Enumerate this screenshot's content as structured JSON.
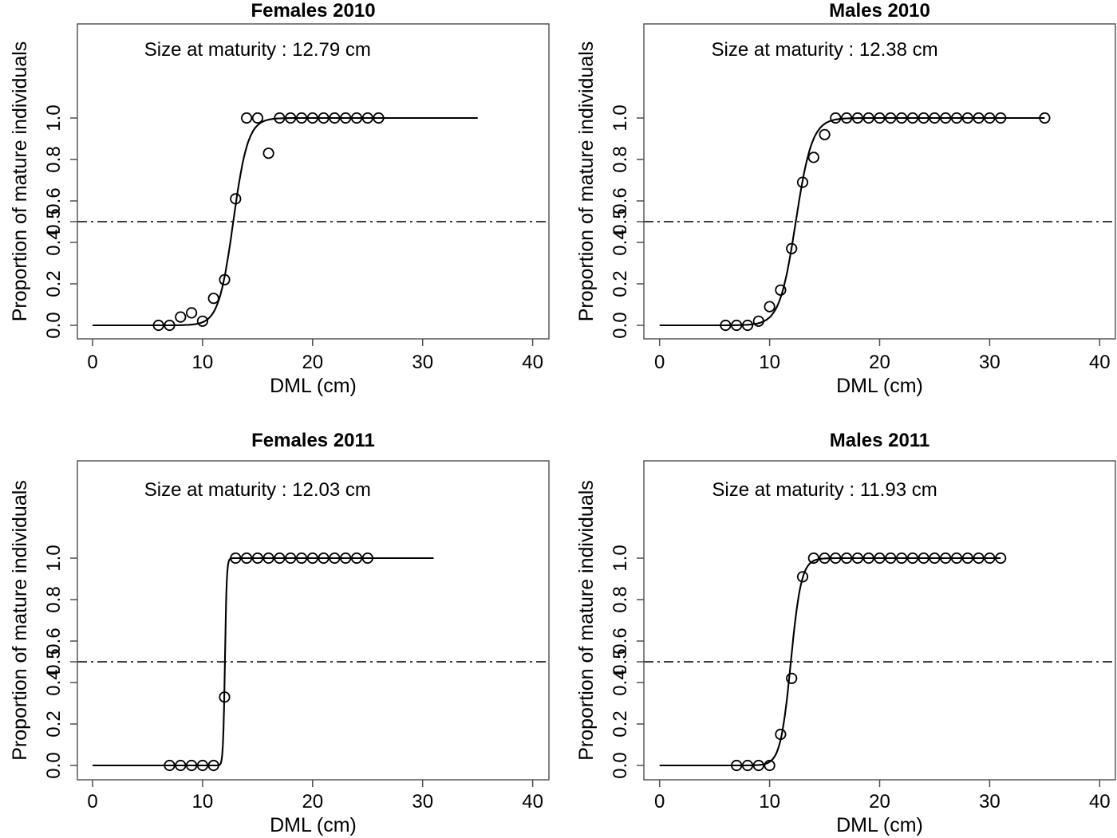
{
  "figure": {
    "background_color": "#ffffff",
    "foreground_color": "#000000",
    "frame_color": "#4d4d4d"
  },
  "chart_data": [
    {
      "type": "scatter",
      "title": "Females 2010",
      "annotation": "Size at maturity : 12.79 cm",
      "size_at_maturity_cm": 12.79,
      "xlabel": "DML (cm)",
      "ylabel": "Proportion of mature individuals",
      "x_ticks": [
        0,
        10,
        20,
        30,
        40
      ],
      "x_tick_labels": [
        "0",
        "10",
        "20",
        "30",
        "40"
      ],
      "y_ticks": [
        0,
        0.2,
        0.4,
        0.5,
        0.6,
        0.8,
        1.0
      ],
      "y_tick_labels": [
        "0.0",
        "0.2",
        "0.4",
        "0.5",
        "0.6",
        "0.8",
        "1.0"
      ],
      "xlim": [
        0,
        40
      ],
      "reference_line_y": 0.5,
      "grid": false,
      "points": {
        "x_cm": [
          6,
          7,
          8,
          9,
          10,
          11,
          12,
          13,
          14,
          15,
          16,
          17,
          18,
          19,
          20,
          21,
          22,
          23,
          24,
          25,
          26
        ],
        "proportion": [
          0,
          0,
          0.04,
          0.06,
          0.02,
          0.13,
          0.22,
          0.61,
          1,
          1,
          0.83,
          1,
          1,
          1,
          1,
          1,
          1,
          1,
          1,
          1,
          1
        ]
      },
      "fit_curve": {
        "midpoint_cm": 12.79,
        "steepness": 1.5,
        "x_start_cm": 0,
        "x_end_cm": 35
      }
    },
    {
      "type": "scatter",
      "title": "Males 2010",
      "annotation": "Size at maturity : 12.38 cm",
      "size_at_maturity_cm": 12.38,
      "xlabel": "DML (cm)",
      "ylabel": "Proportion of mature individuals",
      "x_ticks": [
        0,
        10,
        20,
        30,
        40
      ],
      "x_tick_labels": [
        "0",
        "10",
        "20",
        "30",
        "40"
      ],
      "y_ticks": [
        0,
        0.2,
        0.4,
        0.5,
        0.6,
        0.8,
        1.0
      ],
      "y_tick_labels": [
        "0.0",
        "0.2",
        "0.4",
        "0.5",
        "0.6",
        "0.8",
        "1.0"
      ],
      "xlim": [
        0,
        40
      ],
      "reference_line_y": 0.5,
      "grid": false,
      "points": {
        "x_cm": [
          6,
          7,
          8,
          9,
          10,
          11,
          12,
          13,
          14,
          15,
          16,
          17,
          18,
          19,
          20,
          21,
          22,
          23,
          24,
          25,
          26,
          27,
          28,
          29,
          30,
          31,
          35
        ],
        "proportion": [
          0,
          0,
          0,
          0.02,
          0.09,
          0.17,
          0.37,
          0.69,
          0.81,
          0.92,
          1,
          1,
          1,
          1,
          1,
          1,
          1,
          1,
          1,
          1,
          1,
          1,
          1,
          1,
          1,
          1,
          1
        ]
      },
      "fit_curve": {
        "midpoint_cm": 12.38,
        "steepness": 1.35,
        "x_start_cm": 0,
        "x_end_cm": 35
      }
    },
    {
      "type": "scatter",
      "title": "Females 2011",
      "annotation": "Size at maturity : 12.03 cm",
      "size_at_maturity_cm": 12.03,
      "xlabel": "DML (cm)",
      "ylabel": "Proportion of mature individuals",
      "x_ticks": [
        0,
        10,
        20,
        30,
        40
      ],
      "x_tick_labels": [
        "0",
        "10",
        "20",
        "30",
        "40"
      ],
      "y_ticks": [
        0,
        0.2,
        0.4,
        0.5,
        0.6,
        0.8,
        1.0
      ],
      "y_tick_labels": [
        "0.0",
        "0.2",
        "0.4",
        "0.5",
        "0.6",
        "0.8",
        "1.0"
      ],
      "xlim": [
        0,
        40
      ],
      "reference_line_y": 0.5,
      "grid": false,
      "points": {
        "x_cm": [
          7,
          8,
          9,
          10,
          11,
          12,
          13,
          14,
          15,
          16,
          17,
          18,
          19,
          20,
          21,
          22,
          23,
          24,
          25
        ],
        "proportion": [
          0,
          0,
          0,
          0,
          0,
          0.33,
          1,
          1,
          1,
          1,
          1,
          1,
          1,
          1,
          1,
          1,
          1,
          1,
          1
        ]
      },
      "fit_curve": {
        "midpoint_cm": 12.03,
        "steepness": 12,
        "x_start_cm": 0,
        "x_end_cm": 31
      }
    },
    {
      "type": "scatter",
      "title": "Males 2011",
      "annotation": "Size at maturity : 11.93 cm",
      "size_at_maturity_cm": 11.93,
      "xlabel": "DML (cm)",
      "ylabel": "Proportion of mature individuals",
      "x_ticks": [
        0,
        10,
        20,
        30,
        40
      ],
      "x_tick_labels": [
        "0",
        "10",
        "20",
        "30",
        "40"
      ],
      "y_ticks": [
        0,
        0.2,
        0.4,
        0.5,
        0.6,
        0.8,
        1.0
      ],
      "y_tick_labels": [
        "0.0",
        "0.2",
        "0.4",
        "0.5",
        "0.6",
        "0.8",
        "1.0"
      ],
      "xlim": [
        0,
        40
      ],
      "reference_line_y": 0.5,
      "grid": false,
      "points": {
        "x_cm": [
          7,
          8,
          9,
          10,
          11,
          12,
          13,
          14,
          15,
          16,
          17,
          18,
          19,
          20,
          21,
          22,
          23,
          24,
          25,
          26,
          27,
          28,
          29,
          30,
          31
        ],
        "proportion": [
          0,
          0,
          0,
          0,
          0.15,
          0.42,
          0.91,
          1,
          1,
          1,
          1,
          1,
          1,
          1,
          1,
          1,
          1,
          1,
          1,
          1,
          1,
          1,
          1,
          1,
          1
        ]
      },
      "fit_curve": {
        "midpoint_cm": 11.93,
        "steepness": 2.1,
        "x_start_cm": 0,
        "x_end_cm": 31
      }
    }
  ]
}
